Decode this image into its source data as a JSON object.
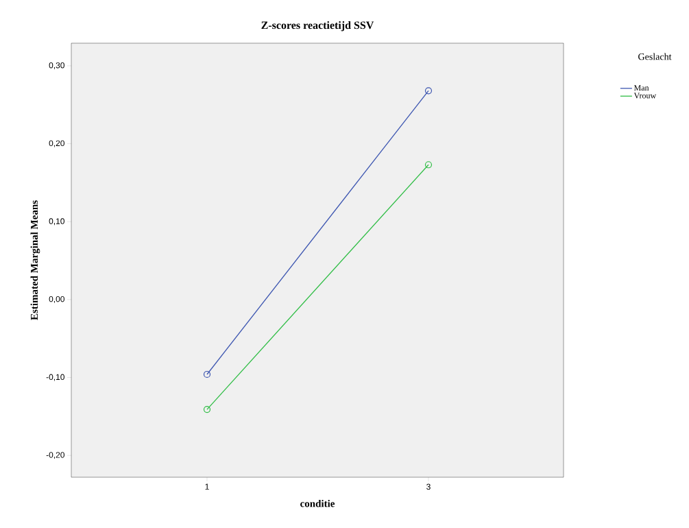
{
  "chart_data": {
    "type": "line",
    "title": "Z-scores reactietijd SSV",
    "xlabel": "conditie",
    "ylabel": "Estimated Marginal Means",
    "legend_title": "Geslacht",
    "categories": [
      "1",
      "3"
    ],
    "series": [
      {
        "name": "Man",
        "color": "#3c55b0",
        "values": [
          -0.096,
          0.268
        ]
      },
      {
        "name": "Vrouw",
        "color": "#2fbd45",
        "values": [
          -0.141,
          0.173
        ]
      }
    ],
    "ylim": [
      -0.228,
      0.329
    ],
    "yticks": [
      {
        "value": -0.2,
        "label": "-0,20"
      },
      {
        "value": -0.1,
        "label": "-0,10"
      },
      {
        "value": 0.0,
        "label": "0,00"
      },
      {
        "value": 0.1,
        "label": "0,10"
      },
      {
        "value": 0.2,
        "label": "0,20"
      },
      {
        "value": 0.3,
        "label": "0,30"
      }
    ],
    "legend": "top right",
    "marker": "circle",
    "line_style": "solid",
    "grid": false
  }
}
